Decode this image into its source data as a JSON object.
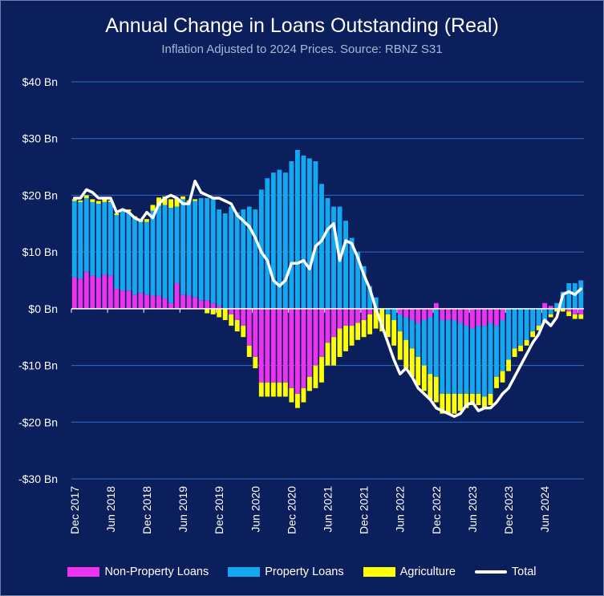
{
  "chart_data": {
    "type": "bar",
    "title": "Annual Change in Loans Outstanding (Real)",
    "subtitle": "Inflation Adjusted to 2024 Prices. Source: RBNZ S31",
    "ylim": [
      -30,
      40
    ],
    "y_ticks": [
      40,
      30,
      20,
      10,
      0,
      -10,
      -20,
      -30
    ],
    "y_tick_labels": [
      "$40 Bn",
      "$30 Bn",
      "$20 Bn",
      "$10 Bn",
      "$0 Bn",
      "-$10 Bn",
      "-$20 Bn",
      "-$30 Bn"
    ],
    "x_tick_labels": [
      "Dec 2017",
      "Jun 2018",
      "Dec 2018",
      "Jun 2019",
      "Dec 2019",
      "Jun 2020",
      "Dec 2020",
      "Jun 2021",
      "Dec 2021",
      "Jun 2022",
      "Dec 2022",
      "Jun 2023",
      "Dec 2023",
      "Jun 2024"
    ],
    "x_tick_every": 6,
    "grid": true,
    "stacked": true,
    "legend_position": "bottom",
    "colors": {
      "non_property": "#ee33ee",
      "property": "#14a8f0",
      "agriculture": "#ffff00",
      "total": "#ffffff",
      "grid": "#2f6fc4",
      "background": "#0b1f5c"
    },
    "categories": [
      "Dec 2017",
      "Jan 2018",
      "Feb 2018",
      "Mar 2018",
      "Apr 2018",
      "May 2018",
      "Jun 2018",
      "Jul 2018",
      "Aug 2018",
      "Sep 2018",
      "Oct 2018",
      "Nov 2018",
      "Dec 2018",
      "Jan 2019",
      "Feb 2019",
      "Mar 2019",
      "Apr 2019",
      "May 2019",
      "Jun 2019",
      "Jul 2019",
      "Aug 2019",
      "Sep 2019",
      "Oct 2019",
      "Nov 2019",
      "Dec 2019",
      "Jan 2020",
      "Feb 2020",
      "Mar 2020",
      "Apr 2020",
      "May 2020",
      "Jun 2020",
      "Jul 2020",
      "Aug 2020",
      "Sep 2020",
      "Oct 2020",
      "Nov 2020",
      "Dec 2020",
      "Jan 2021",
      "Feb 2021",
      "Mar 2021",
      "Apr 2021",
      "May 2021",
      "Jun 2021",
      "Jul 2021",
      "Aug 2021",
      "Sep 2021",
      "Oct 2021",
      "Nov 2021",
      "Dec 2021",
      "Jan 2022",
      "Feb 2022",
      "Mar 2022",
      "Apr 2022",
      "May 2022",
      "Jun 2022",
      "Jul 2022",
      "Aug 2022",
      "Sep 2022",
      "Oct 2022",
      "Nov 2022",
      "Dec 2022",
      "Jan 2023",
      "Feb 2023",
      "Mar 2023",
      "Apr 2023",
      "May 2023",
      "Jun 2023",
      "Jul 2023",
      "Aug 2023",
      "Sep 2023",
      "Oct 2023",
      "Nov 2023",
      "Dec 2023",
      "Jan 2024",
      "Feb 2024",
      "Mar 2024",
      "Apr 2024",
      "May 2024",
      "Jun 2024",
      "Jul 2024",
      "Aug 2024",
      "Sep 2024",
      "Oct 2024",
      "Nov 2024",
      "Dec 2024"
    ],
    "series": [
      {
        "name": "Non-Property Loans",
        "values": [
          5.5,
          5.3,
          6.5,
          5.8,
          5.5,
          6.0,
          5.8,
          3.5,
          3.2,
          3.2,
          2.5,
          2.8,
          2.5,
          2.3,
          2.3,
          1.8,
          1.0,
          4.5,
          2.5,
          2.3,
          2.0,
          1.5,
          1.5,
          1.0,
          0.5,
          0.0,
          -1.0,
          -2.0,
          -3.0,
          -6.5,
          -8.5,
          -13.0,
          -13.0,
          -13.0,
          -13.0,
          -13.0,
          -14.0,
          -15.0,
          -14.0,
          -12.0,
          -10.0,
          -8.5,
          -6.0,
          -5.0,
          -3.5,
          -3.0,
          -3.0,
          -2.5,
          -2.0,
          -1.0,
          0.0,
          0.0,
          0.0,
          0.0,
          -1.0,
          -1.5,
          -2.0,
          -2.5,
          -2.0,
          -1.5,
          1.0,
          -2.0,
          -2.0,
          -2.0,
          -2.5,
          -3.0,
          -3.5,
          -3.0,
          -3.0,
          -2.5,
          -3.0,
          -2.0,
          0.0,
          0.0,
          0.0,
          0.0,
          0.0,
          0.0,
          1.0,
          0.5,
          0.0,
          0.0,
          -0.5,
          -1.0,
          -1.0
        ]
      },
      {
        "name": "Property Loans",
        "values": [
          13.5,
          13.5,
          13.0,
          13.0,
          13.0,
          12.8,
          13.0,
          13.0,
          14.0,
          14.0,
          13.5,
          12.5,
          12.8,
          15.0,
          15.8,
          16.5,
          16.8,
          13.5,
          16.8,
          16.5,
          17.0,
          18.0,
          18.0,
          18.5,
          17.0,
          16.8,
          18.0,
          17.0,
          17.5,
          18.0,
          17.5,
          21.0,
          23.0,
          24.0,
          24.5,
          24.0,
          26.0,
          28.0,
          27.0,
          26.5,
          26.0,
          22.0,
          19.5,
          18.0,
          18.0,
          15.5,
          12.5,
          10.0,
          7.5,
          4.0,
          2.0,
          0.0,
          -1.0,
          -2.0,
          -3.0,
          -4.0,
          -5.0,
          -6.0,
          -8.0,
          -10.0,
          -12.0,
          -13.0,
          -13.0,
          -13.0,
          -12.5,
          -12.0,
          -11.5,
          -12.0,
          -12.5,
          -12.5,
          -9.0,
          -9.0,
          -9.0,
          -7.0,
          -6.5,
          -5.5,
          -4.0,
          -3.0,
          -2.0,
          -1.0,
          1.0,
          3.0,
          4.5,
          4.5,
          5.0
        ]
      },
      {
        "name": "Agriculture",
        "values": [
          0.3,
          0.3,
          0.5,
          0.5,
          0.5,
          0.5,
          0.3,
          0.3,
          0.3,
          0.3,
          0.3,
          0.5,
          0.5,
          1.0,
          1.5,
          1.5,
          1.5,
          1.5,
          0.5,
          0.3,
          0.3,
          0.0,
          -0.8,
          -1.0,
          -1.5,
          -2.0,
          -2.0,
          -2.0,
          -2.0,
          -2.0,
          -2.0,
          -2.5,
          -2.5,
          -2.5,
          -2.5,
          -2.5,
          -2.5,
          -2.5,
          -2.5,
          -2.5,
          -4.0,
          -4.5,
          -4.0,
          -5.0,
          -5.0,
          -4.5,
          -3.5,
          -3.0,
          -3.0,
          -3.5,
          -3.5,
          -4.0,
          -4.0,
          -4.5,
          -5.0,
          -5.0,
          -5.0,
          -5.0,
          -4.5,
          -4.5,
          -4.5,
          -3.5,
          -3.5,
          -3.5,
          -3.0,
          -2.5,
          -2.0,
          -2.0,
          -2.0,
          -2.0,
          -2.0,
          -2.0,
          -2.0,
          -1.5,
          -1.0,
          -1.0,
          -1.0,
          -0.8,
          -0.5,
          -0.5,
          -0.5,
          -0.5,
          -0.8,
          -0.8,
          -0.8
        ]
      }
    ],
    "total": {
      "name": "Total",
      "values": [
        19.5,
        19.5,
        21.0,
        20.5,
        19.5,
        19.5,
        19.5,
        17.0,
        17.5,
        17.0,
        16.0,
        15.5,
        17.0,
        16.0,
        18.5,
        19.5,
        20.0,
        19.5,
        18.5,
        18.5,
        22.5,
        20.5,
        20.0,
        19.5,
        19.5,
        19.0,
        18.5,
        16.5,
        15.5,
        14.5,
        12.5,
        10.0,
        8.5,
        5.0,
        4.0,
        5.0,
        8.0,
        8.0,
        8.5,
        7.0,
        11.0,
        12.0,
        14.0,
        15.0,
        8.5,
        12.0,
        11.5,
        9.0,
        6.0,
        3.5,
        0.0,
        -3.0,
        -6.0,
        -9.0,
        -11.5,
        -10.5,
        -12.0,
        -14.0,
        -15.0,
        -16.0,
        -17.5,
        -18.0,
        -18.5,
        -19.0,
        -18.5,
        -17.0,
        -16.5,
        -18.0,
        -17.5,
        -17.5,
        -16.5,
        -15.0,
        -14.0,
        -12.0,
        -10.0,
        -8.0,
        -6.0,
        -4.5,
        -2.0,
        -3.0,
        -1.5,
        2.5,
        3.0,
        2.5,
        3.5
      ]
    }
  }
}
